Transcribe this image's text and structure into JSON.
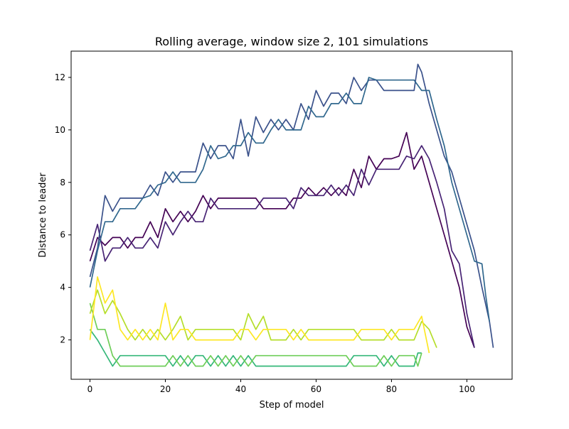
{
  "chart_data": {
    "type": "line",
    "title": "Rolling average, window size 2, 101 simulations",
    "xlabel": "Step of model",
    "ylabel": "Distance to leader",
    "xlim": [
      -5,
      112
    ],
    "ylim": [
      0.5,
      13.0
    ],
    "xticks": [
      0,
      20,
      40,
      60,
      80,
      100
    ],
    "yticks": [
      2,
      4,
      6,
      8,
      10,
      12
    ],
    "grid": false,
    "legend": "none",
    "series": [
      {
        "color": "#440154",
        "x": [
          0,
          2,
          4,
          6,
          8,
          10,
          12,
          14,
          16,
          18,
          20,
          22,
          24,
          26,
          28,
          30,
          32,
          34,
          36,
          38,
          40,
          42,
          44,
          46,
          48,
          50,
          52,
          54,
          56,
          58,
          60,
          62,
          64,
          66,
          68,
          70,
          72,
          74,
          76,
          78,
          80,
          82,
          84,
          86,
          88,
          90,
          92,
          94,
          96,
          98,
          100,
          102
        ],
        "y": [
          5.0,
          5.9,
          5.6,
          5.9,
          5.9,
          5.5,
          5.9,
          5.9,
          6.5,
          5.9,
          7.0,
          6.5,
          6.9,
          6.5,
          6.9,
          7.5,
          7.0,
          7.4,
          7.4,
          7.4,
          7.4,
          7.4,
          7.4,
          7.0,
          7.0,
          7.0,
          7.0,
          7.4,
          7.4,
          7.8,
          7.5,
          7.8,
          7.5,
          7.8,
          7.5,
          8.5,
          7.8,
          9.0,
          8.5,
          8.9,
          8.9,
          9.0,
          9.9,
          8.5,
          9.0,
          8.0,
          7.0,
          6.0,
          5.0,
          4.0,
          2.5,
          1.7
        ]
      },
      {
        "color": "#482475",
        "x": [
          0,
          2,
          4,
          6,
          8,
          10,
          12,
          14,
          16,
          18,
          20,
          22,
          24,
          26,
          28,
          30,
          32,
          34,
          36,
          38,
          40,
          42,
          44,
          46,
          48,
          50,
          52,
          54,
          56,
          58,
          60,
          62,
          64,
          66,
          68,
          70,
          72,
          74,
          76,
          78,
          80,
          82,
          84,
          86,
          88,
          90,
          92,
          94,
          96,
          98,
          100,
          102
        ],
        "y": [
          5.4,
          6.4,
          5.0,
          5.5,
          5.5,
          5.9,
          5.5,
          5.5,
          5.9,
          5.5,
          6.5,
          6.0,
          6.5,
          6.9,
          6.5,
          6.5,
          7.4,
          7.0,
          7.0,
          7.0,
          7.0,
          7.0,
          7.0,
          7.4,
          7.4,
          7.4,
          7.4,
          7.0,
          7.8,
          7.5,
          7.5,
          7.5,
          7.9,
          7.5,
          7.9,
          7.5,
          8.5,
          7.9,
          8.5,
          8.5,
          8.5,
          8.5,
          9.0,
          8.9,
          9.4,
          8.9,
          8.0,
          7.0,
          5.4,
          4.9,
          3.0,
          1.7
        ]
      },
      {
        "color": "#3b528b",
        "x": [
          0,
          2,
          4,
          6,
          8,
          10,
          12,
          14,
          16,
          18,
          20,
          22,
          24,
          26,
          28,
          30,
          32,
          34,
          36,
          38,
          40,
          42,
          44,
          46,
          48,
          50,
          52,
          54,
          56,
          58,
          60,
          62,
          64,
          66,
          68,
          70,
          72,
          74,
          76,
          78,
          80,
          82,
          84,
          86,
          87,
          88,
          90,
          92,
          94,
          96,
          98,
          100,
          102,
          104,
          106,
          107
        ],
        "y": [
          4.4,
          5.5,
          7.5,
          6.9,
          7.4,
          7.4,
          7.4,
          7.4,
          7.9,
          7.5,
          8.4,
          8.0,
          8.4,
          8.4,
          8.4,
          9.5,
          8.9,
          9.4,
          9.4,
          8.9,
          10.4,
          9.0,
          10.5,
          9.9,
          10.4,
          10.0,
          10.4,
          10.0,
          11.0,
          10.4,
          11.5,
          10.9,
          11.4,
          11.4,
          11.0,
          12.0,
          11.5,
          11.9,
          11.9,
          11.5,
          11.5,
          11.5,
          11.5,
          11.5,
          12.5,
          12.2,
          11.0,
          10.0,
          9.0,
          8.4,
          7.4,
          6.4,
          5.4,
          4.0,
          2.7,
          1.7
        ]
      },
      {
        "color": "#31688e",
        "x": [
          0,
          2,
          4,
          6,
          8,
          10,
          12,
          14,
          16,
          18,
          20,
          22,
          24,
          26,
          28,
          30,
          32,
          34,
          36,
          38,
          40,
          42,
          44,
          46,
          48,
          50,
          52,
          54,
          56,
          58,
          60,
          62,
          64,
          66,
          68,
          70,
          72,
          74,
          76,
          78,
          80,
          82,
          84,
          86,
          88,
          90,
          92,
          94,
          96,
          98,
          100,
          102,
          104,
          105,
          106
        ],
        "y": [
          4.0,
          5.4,
          6.5,
          6.5,
          7.0,
          7.0,
          7.0,
          7.4,
          7.5,
          7.9,
          8.0,
          8.4,
          8.0,
          8.0,
          8.0,
          8.5,
          9.4,
          8.9,
          9.0,
          9.4,
          9.4,
          9.9,
          9.5,
          9.5,
          10.0,
          10.4,
          10.0,
          10.0,
          10.0,
          10.9,
          10.5,
          10.5,
          11.0,
          11.0,
          11.4,
          11.0,
          11.0,
          12.0,
          11.9,
          11.9,
          11.9,
          11.9,
          11.9,
          11.9,
          11.5,
          11.5,
          10.4,
          9.4,
          8.0,
          7.0,
          6.0,
          5.0,
          4.9,
          3.7,
          2.7
        ]
      },
      {
        "color": "#35b779",
        "x": [
          0,
          2,
          4,
          6,
          8,
          10,
          12,
          14,
          16,
          18,
          20,
          22,
          24,
          26,
          28,
          30,
          32,
          34,
          36,
          38,
          40,
          42,
          44,
          46,
          48,
          50,
          52,
          54,
          56,
          58,
          60,
          62,
          64,
          66,
          68,
          70,
          72,
          74,
          76,
          78,
          80,
          82,
          84,
          86,
          87,
          88
        ],
        "y": [
          2.4,
          2.0,
          1.5,
          1.0,
          1.4,
          1.4,
          1.4,
          1.4,
          1.4,
          1.4,
          1.4,
          1.0,
          1.4,
          1.0,
          1.4,
          1.4,
          1.0,
          1.4,
          1.0,
          1.4,
          1.0,
          1.4,
          1.0,
          1.0,
          1.0,
          1.0,
          1.0,
          1.0,
          1.0,
          1.0,
          1.0,
          1.0,
          1.0,
          1.0,
          1.0,
          1.4,
          1.4,
          1.4,
          1.4,
          1.0,
          1.4,
          1.0,
          1.0,
          1.0,
          1.5,
          1.5
        ]
      },
      {
        "color": "#6ece58",
        "x": [
          0,
          2,
          4,
          6,
          8,
          10,
          12,
          14,
          16,
          18,
          20,
          22,
          24,
          26,
          28,
          30,
          32,
          34,
          36,
          38,
          40,
          42,
          44,
          46,
          48,
          50,
          52,
          54,
          56,
          58,
          60,
          62,
          64,
          66,
          68,
          70,
          72,
          74,
          76,
          78,
          80,
          82,
          84,
          86,
          87,
          88
        ],
        "y": [
          3.4,
          2.4,
          2.4,
          1.4,
          1.0,
          1.0,
          1.0,
          1.0,
          1.0,
          1.0,
          1.0,
          1.4,
          1.0,
          1.4,
          1.0,
          1.0,
          1.4,
          1.0,
          1.4,
          1.0,
          1.4,
          1.0,
          1.4,
          1.4,
          1.4,
          1.4,
          1.4,
          1.4,
          1.4,
          1.4,
          1.4,
          1.4,
          1.4,
          1.4,
          1.4,
          1.0,
          1.0,
          1.0,
          1.0,
          1.4,
          1.0,
          1.4,
          1.4,
          1.4,
          1.0,
          1.5
        ]
      },
      {
        "color": "#b5de2b",
        "x": [
          0,
          2,
          4,
          6,
          8,
          10,
          12,
          14,
          16,
          18,
          20,
          22,
          24,
          26,
          28,
          30,
          32,
          34,
          36,
          38,
          40,
          42,
          44,
          46,
          48,
          50,
          52,
          54,
          56,
          58,
          60,
          62,
          64,
          66,
          68,
          70,
          72,
          74,
          76,
          78,
          80,
          82,
          84,
          86,
          88,
          90,
          92
        ],
        "y": [
          3.0,
          3.9,
          3.0,
          3.5,
          3.0,
          2.4,
          2.0,
          2.4,
          2.0,
          2.4,
          2.0,
          2.4,
          2.9,
          2.0,
          2.4,
          2.4,
          2.4,
          2.4,
          2.4,
          2.4,
          2.0,
          3.0,
          2.4,
          2.9,
          2.0,
          2.0,
          2.0,
          2.4,
          2.0,
          2.4,
          2.4,
          2.4,
          2.4,
          2.4,
          2.4,
          2.4,
          2.0,
          2.0,
          2.0,
          2.0,
          2.4,
          2.0,
          2.0,
          2.0,
          2.7,
          2.4,
          1.7
        ]
      },
      {
        "color": "#fde725",
        "x": [
          0,
          2,
          4,
          6,
          8,
          10,
          12,
          14,
          16,
          18,
          20,
          22,
          24,
          26,
          28,
          30,
          32,
          34,
          36,
          38,
          40,
          42,
          44,
          46,
          48,
          50,
          52,
          54,
          56,
          58,
          60,
          62,
          64,
          66,
          68,
          70,
          72,
          74,
          76,
          78,
          80,
          82,
          84,
          86,
          88,
          90
        ],
        "y": [
          2.0,
          4.4,
          3.4,
          3.9,
          2.4,
          2.0,
          2.4,
          2.0,
          2.4,
          2.0,
          3.4,
          2.0,
          2.4,
          2.4,
          2.0,
          2.0,
          2.0,
          2.0,
          2.0,
          2.0,
          2.4,
          2.4,
          2.0,
          2.4,
          2.4,
          2.4,
          2.4,
          2.0,
          2.4,
          2.0,
          2.0,
          2.0,
          2.0,
          2.0,
          2.0,
          2.0,
          2.4,
          2.4,
          2.4,
          2.4,
          2.0,
          2.4,
          2.4,
          2.4,
          2.9,
          1.5
        ]
      }
    ]
  }
}
